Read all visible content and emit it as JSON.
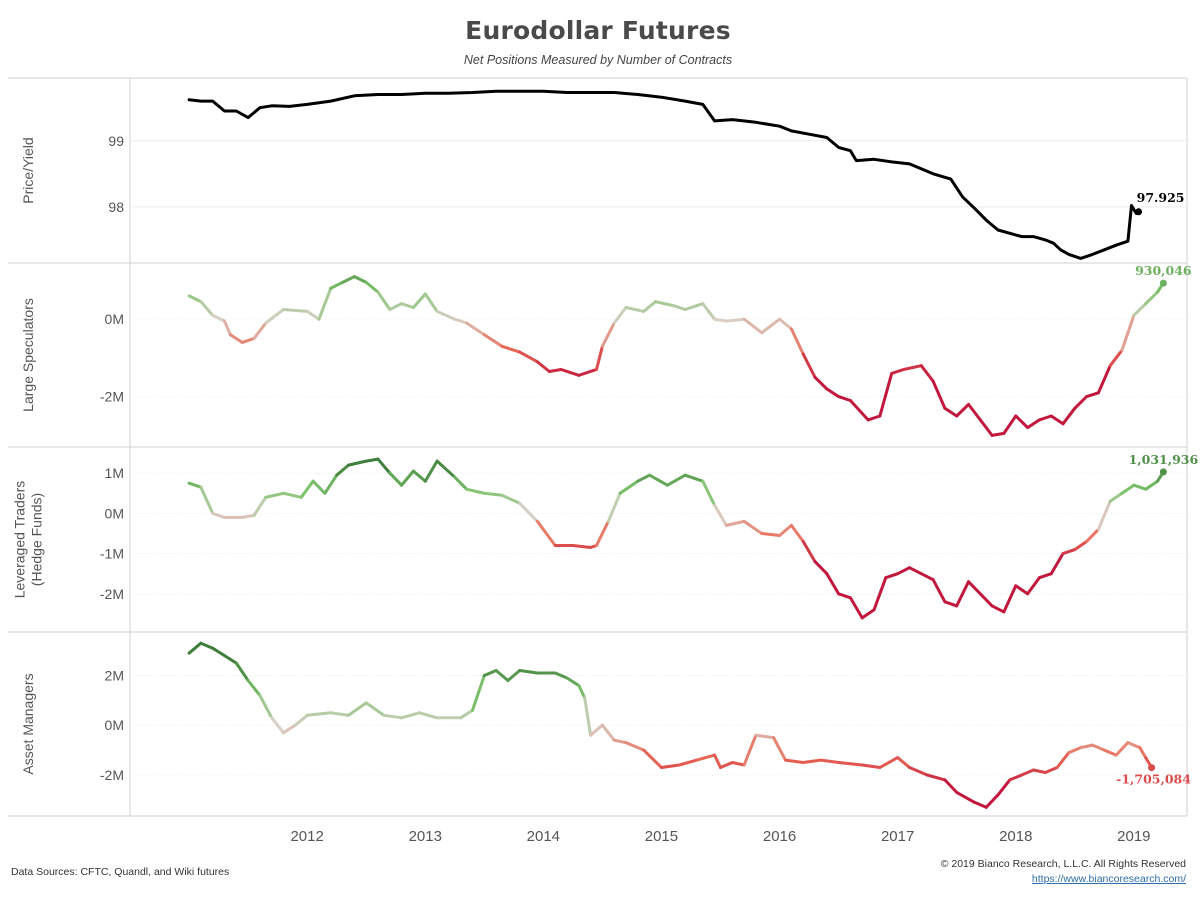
{
  "title": "Eurodollar Futures",
  "subtitle": "Net Positions Measured by Number of Contracts",
  "footer": {
    "sources": "Data Sources: CFTC, Quandl, and Wiki futures",
    "copyright": "© 2019 Bianco Research, L.L.C. All Rights Reserved",
    "url": "https://www.biancoresearch.com/"
  },
  "colors": {
    "price_line": "#000000",
    "positive_light": "#c9d9bb",
    "positive": "#7cc36a",
    "positive_dark": "#3f7d3b",
    "neutral": "#d8d0c7",
    "negative_light": "#f0a18f",
    "negative": "#ea6a55",
    "negative_dark": "#c3183e",
    "gridline": "#ececec",
    "divider": "#d0d0d0"
  },
  "chart_data": [
    {
      "type": "line",
      "panel": "price",
      "ylabel": "Price/Yield",
      "yticks": [
        {
          "value": 98,
          "label": "98"
        },
        {
          "value": 99,
          "label": "99"
        }
      ],
      "ylim": [
        97.15,
        99.95
      ],
      "xlim": [
        2011.0,
        2019.95
      ],
      "color_mode": "solid",
      "end_label": "97.925",
      "points": [
        [
          2011.5,
          99.62
        ],
        [
          2011.6,
          99.6
        ],
        [
          2011.7,
          99.6
        ],
        [
          2011.8,
          99.45
        ],
        [
          2011.9,
          99.45
        ],
        [
          2012.0,
          99.35
        ],
        [
          2012.1,
          99.5
        ],
        [
          2012.2,
          99.53
        ],
        [
          2012.35,
          99.52
        ],
        [
          2012.5,
          99.55
        ],
        [
          2012.7,
          99.6
        ],
        [
          2012.9,
          99.68
        ],
        [
          2013.1,
          99.7
        ],
        [
          2013.3,
          99.7
        ],
        [
          2013.5,
          99.72
        ],
        [
          2013.7,
          99.72
        ],
        [
          2013.9,
          99.73
        ],
        [
          2014.1,
          99.75
        ],
        [
          2014.3,
          99.75
        ],
        [
          2014.5,
          99.75
        ],
        [
          2014.7,
          99.73
        ],
        [
          2014.9,
          99.73
        ],
        [
          2015.1,
          99.73
        ],
        [
          2015.3,
          99.7
        ],
        [
          2015.5,
          99.66
        ],
        [
          2015.7,
          99.6
        ],
        [
          2015.85,
          99.55
        ],
        [
          2015.95,
          99.3
        ],
        [
          2016.1,
          99.32
        ],
        [
          2016.3,
          99.28
        ],
        [
          2016.5,
          99.22
        ],
        [
          2016.6,
          99.15
        ],
        [
          2016.75,
          99.1
        ],
        [
          2016.9,
          99.05
        ],
        [
          2017.0,
          98.9
        ],
        [
          2017.1,
          98.85
        ],
        [
          2017.15,
          98.7
        ],
        [
          2017.3,
          98.72
        ],
        [
          2017.45,
          98.68
        ],
        [
          2017.6,
          98.65
        ],
        [
          2017.8,
          98.5
        ],
        [
          2017.95,
          98.42
        ],
        [
          2018.05,
          98.15
        ],
        [
          2018.15,
          97.98
        ],
        [
          2018.25,
          97.8
        ],
        [
          2018.35,
          97.65
        ],
        [
          2018.45,
          97.6
        ],
        [
          2018.55,
          97.55
        ],
        [
          2018.65,
          97.55
        ],
        [
          2018.75,
          97.5
        ],
        [
          2018.82,
          97.45
        ],
        [
          2018.88,
          97.35
        ],
        [
          2018.95,
          97.28
        ],
        [
          2019.05,
          97.22
        ],
        [
          2019.15,
          97.28
        ],
        [
          2019.25,
          97.35
        ],
        [
          2019.35,
          97.42
        ],
        [
          2019.45,
          97.48
        ],
        [
          2019.48,
          98.02
        ],
        [
          2019.52,
          97.9
        ],
        [
          2019.54,
          97.925
        ]
      ]
    },
    {
      "type": "line",
      "panel": "large_speculators",
      "ylabel": "Large Speculators",
      "yticks": [
        {
          "value": 0,
          "label": "0M"
        },
        {
          "value": -2000000,
          "label": "-2M"
        }
      ],
      "ylim": [
        -3300000,
        1450000
      ],
      "xlim": [
        2011.0,
        2019.95
      ],
      "color_mode": "diverging",
      "color_range": 1500000,
      "end_label": "930,046",
      "points": [
        [
          2011.5,
          600000
        ],
        [
          2011.6,
          450000
        ],
        [
          2011.7,
          100000
        ],
        [
          2011.8,
          -50000
        ],
        [
          2011.85,
          -400000
        ],
        [
          2011.95,
          -600000
        ],
        [
          2012.05,
          -500000
        ],
        [
          2012.15,
          -100000
        ],
        [
          2012.3,
          250000
        ],
        [
          2012.5,
          200000
        ],
        [
          2012.6,
          0
        ],
        [
          2012.7,
          800000
        ],
        [
          2012.8,
          950000
        ],
        [
          2012.9,
          1100000
        ],
        [
          2013.0,
          950000
        ],
        [
          2013.1,
          700000
        ],
        [
          2013.2,
          250000
        ],
        [
          2013.3,
          400000
        ],
        [
          2013.4,
          300000
        ],
        [
          2013.5,
          650000
        ],
        [
          2013.6,
          200000
        ],
        [
          2013.75,
          0
        ],
        [
          2013.85,
          -100000
        ],
        [
          2014.0,
          -400000
        ],
        [
          2014.15,
          -700000
        ],
        [
          2014.3,
          -850000
        ],
        [
          2014.45,
          -1100000
        ],
        [
          2014.55,
          -1350000
        ],
        [
          2014.65,
          -1300000
        ],
        [
          2014.8,
          -1450000
        ],
        [
          2014.95,
          -1300000
        ],
        [
          2015.0,
          -700000
        ],
        [
          2015.1,
          -100000
        ],
        [
          2015.2,
          300000
        ],
        [
          2015.35,
          200000
        ],
        [
          2015.45,
          450000
        ],
        [
          2015.6,
          350000
        ],
        [
          2015.7,
          250000
        ],
        [
          2015.85,
          400000
        ],
        [
          2015.95,
          0
        ],
        [
          2016.05,
          -50000
        ],
        [
          2016.2,
          0
        ],
        [
          2016.35,
          -350000
        ],
        [
          2016.5,
          0
        ],
        [
          2016.6,
          -250000
        ],
        [
          2016.7,
          -900000
        ],
        [
          2016.8,
          -1500000
        ],
        [
          2016.9,
          -1800000
        ],
        [
          2017.0,
          -2000000
        ],
        [
          2017.1,
          -2100000
        ],
        [
          2017.25,
          -2600000
        ],
        [
          2017.35,
          -2500000
        ],
        [
          2017.45,
          -1400000
        ],
        [
          2017.55,
          -1300000
        ],
        [
          2017.7,
          -1200000
        ],
        [
          2017.8,
          -1600000
        ],
        [
          2017.9,
          -2300000
        ],
        [
          2018.0,
          -2500000
        ],
        [
          2018.1,
          -2200000
        ],
        [
          2018.2,
          -2600000
        ],
        [
          2018.3,
          -3000000
        ],
        [
          2018.4,
          -2950000
        ],
        [
          2018.5,
          -2500000
        ],
        [
          2018.6,
          -2800000
        ],
        [
          2018.7,
          -2600000
        ],
        [
          2018.8,
          -2500000
        ],
        [
          2018.9,
          -2700000
        ],
        [
          2019.0,
          -2300000
        ],
        [
          2019.1,
          -2000000
        ],
        [
          2019.2,
          -1900000
        ],
        [
          2019.3,
          -1200000
        ],
        [
          2019.4,
          -800000
        ],
        [
          2019.5,
          100000
        ],
        [
          2019.6,
          400000
        ],
        [
          2019.7,
          700000
        ],
        [
          2019.75,
          930046
        ]
      ]
    },
    {
      "type": "line",
      "panel": "leveraged_traders",
      "ylabel": [
        "Leveraged Traders",
        "(Hedge Funds)"
      ],
      "yticks": [
        {
          "value": 1000000,
          "label": "1M"
        },
        {
          "value": 0,
          "label": "0M"
        },
        {
          "value": -1000000,
          "label": "-1M"
        },
        {
          "value": -2000000,
          "label": "-2M"
        }
      ],
      "ylim": [
        -2950000,
        1650000
      ],
      "xlim": [
        2011.0,
        2019.95
      ],
      "color_mode": "diverging",
      "color_range": 1200000,
      "end_label": "1,031,936",
      "points": [
        [
          2011.5,
          750000
        ],
        [
          2011.6,
          650000
        ],
        [
          2011.7,
          0
        ],
        [
          2011.8,
          -100000
        ],
        [
          2011.95,
          -100000
        ],
        [
          2012.05,
          -50000
        ],
        [
          2012.15,
          400000
        ],
        [
          2012.3,
          500000
        ],
        [
          2012.45,
          400000
        ],
        [
          2012.55,
          800000
        ],
        [
          2012.65,
          500000
        ],
        [
          2012.75,
          950000
        ],
        [
          2012.85,
          1200000
        ],
        [
          2013.0,
          1300000
        ],
        [
          2013.1,
          1350000
        ],
        [
          2013.2,
          1000000
        ],
        [
          2013.3,
          700000
        ],
        [
          2013.4,
          1050000
        ],
        [
          2013.5,
          800000
        ],
        [
          2013.6,
          1300000
        ],
        [
          2013.75,
          900000
        ],
        [
          2013.85,
          600000
        ],
        [
          2014.0,
          500000
        ],
        [
          2014.15,
          450000
        ],
        [
          2014.3,
          250000
        ],
        [
          2014.45,
          -200000
        ],
        [
          2014.6,
          -800000
        ],
        [
          2014.75,
          -800000
        ],
        [
          2014.9,
          -850000
        ],
        [
          2014.95,
          -800000
        ],
        [
          2015.05,
          -200000
        ],
        [
          2015.15,
          500000
        ],
        [
          2015.3,
          800000
        ],
        [
          2015.4,
          950000
        ],
        [
          2015.55,
          700000
        ],
        [
          2015.7,
          950000
        ],
        [
          2015.85,
          800000
        ],
        [
          2015.95,
          200000
        ],
        [
          2016.05,
          -300000
        ],
        [
          2016.2,
          -200000
        ],
        [
          2016.35,
          -500000
        ],
        [
          2016.5,
          -550000
        ],
        [
          2016.6,
          -300000
        ],
        [
          2016.7,
          -700000
        ],
        [
          2016.8,
          -1200000
        ],
        [
          2016.9,
          -1500000
        ],
        [
          2017.0,
          -2000000
        ],
        [
          2017.1,
          -2100000
        ],
        [
          2017.2,
          -2600000
        ],
        [
          2017.3,
          -2400000
        ],
        [
          2017.4,
          -1600000
        ],
        [
          2017.5,
          -1500000
        ],
        [
          2017.6,
          -1350000
        ],
        [
          2017.7,
          -1500000
        ],
        [
          2017.8,
          -1650000
        ],
        [
          2017.9,
          -2200000
        ],
        [
          2018.0,
          -2300000
        ],
        [
          2018.1,
          -1700000
        ],
        [
          2018.2,
          -2000000
        ],
        [
          2018.3,
          -2300000
        ],
        [
          2018.4,
          -2450000
        ],
        [
          2018.5,
          -1800000
        ],
        [
          2018.6,
          -2000000
        ],
        [
          2018.7,
          -1600000
        ],
        [
          2018.8,
          -1500000
        ],
        [
          2018.9,
          -1000000
        ],
        [
          2019.0,
          -900000
        ],
        [
          2019.1,
          -700000
        ],
        [
          2019.2,
          -400000
        ],
        [
          2019.3,
          300000
        ],
        [
          2019.4,
          500000
        ],
        [
          2019.5,
          700000
        ],
        [
          2019.6,
          600000
        ],
        [
          2019.7,
          800000
        ],
        [
          2019.75,
          1031936
        ]
      ]
    },
    {
      "type": "line",
      "panel": "asset_managers",
      "ylabel": "Asset Managers",
      "yticks": [
        {
          "value": 2000000,
          "label": "2M"
        },
        {
          "value": 0,
          "label": "0M"
        },
        {
          "value": -2000000,
          "label": "-2M"
        }
      ],
      "ylim": [
        -3650000,
        3750000
      ],
      "xlim": [
        2011.0,
        2019.95
      ],
      "color_mode": "diverging",
      "color_range": 2500000,
      "end_label": "-1,705,084",
      "points": [
        [
          2011.5,
          2900000
        ],
        [
          2011.6,
          3300000
        ],
        [
          2011.7,
          3100000
        ],
        [
          2011.8,
          2800000
        ],
        [
          2011.9,
          2500000
        ],
        [
          2012.0,
          1800000
        ],
        [
          2012.1,
          1200000
        ],
        [
          2012.2,
          300000
        ],
        [
          2012.3,
          -300000
        ],
        [
          2012.4,
          0
        ],
        [
          2012.5,
          400000
        ],
        [
          2012.7,
          500000
        ],
        [
          2012.85,
          400000
        ],
        [
          2013.0,
          900000
        ],
        [
          2013.15,
          400000
        ],
        [
          2013.3,
          300000
        ],
        [
          2013.45,
          500000
        ],
        [
          2013.6,
          300000
        ],
        [
          2013.8,
          300000
        ],
        [
          2013.9,
          600000
        ],
        [
          2014.0,
          2000000
        ],
        [
          2014.1,
          2200000
        ],
        [
          2014.2,
          1800000
        ],
        [
          2014.3,
          2200000
        ],
        [
          2014.45,
          2100000
        ],
        [
          2014.6,
          2100000
        ],
        [
          2014.7,
          1900000
        ],
        [
          2014.8,
          1600000
        ],
        [
          2014.85,
          1100000
        ],
        [
          2014.9,
          -400000
        ],
        [
          2015.0,
          0
        ],
        [
          2015.1,
          -600000
        ],
        [
          2015.2,
          -700000
        ],
        [
          2015.35,
          -1000000
        ],
        [
          2015.5,
          -1700000
        ],
        [
          2015.65,
          -1600000
        ],
        [
          2015.8,
          -1400000
        ],
        [
          2015.95,
          -1200000
        ],
        [
          2016.0,
          -1700000
        ],
        [
          2016.1,
          -1500000
        ],
        [
          2016.2,
          -1600000
        ],
        [
          2016.3,
          -400000
        ],
        [
          2016.45,
          -500000
        ],
        [
          2016.55,
          -1400000
        ],
        [
          2016.7,
          -1500000
        ],
        [
          2016.85,
          -1400000
        ],
        [
          2017.0,
          -1500000
        ],
        [
          2017.2,
          -1600000
        ],
        [
          2017.35,
          -1700000
        ],
        [
          2017.5,
          -1300000
        ],
        [
          2017.6,
          -1700000
        ],
        [
          2017.75,
          -2000000
        ],
        [
          2017.9,
          -2200000
        ],
        [
          2018.0,
          -2700000
        ],
        [
          2018.15,
          -3100000
        ],
        [
          2018.25,
          -3300000
        ],
        [
          2018.35,
          -2800000
        ],
        [
          2018.45,
          -2200000
        ],
        [
          2018.55,
          -2000000
        ],
        [
          2018.65,
          -1800000
        ],
        [
          2018.75,
          -1900000
        ],
        [
          2018.85,
          -1700000
        ],
        [
          2018.95,
          -1100000
        ],
        [
          2019.05,
          -900000
        ],
        [
          2019.15,
          -800000
        ],
        [
          2019.25,
          -1000000
        ],
        [
          2019.35,
          -1200000
        ],
        [
          2019.45,
          -700000
        ],
        [
          2019.55,
          -900000
        ],
        [
          2019.6,
          -1300000
        ],
        [
          2019.65,
          -1705084
        ]
      ]
    }
  ],
  "xaxis": {
    "ticks": [
      {
        "value": 2012.5,
        "label": "2012"
      },
      {
        "value": 2013.5,
        "label": "2013"
      },
      {
        "value": 2014.5,
        "label": "2014"
      },
      {
        "value": 2015.5,
        "label": "2015"
      },
      {
        "value": 2016.5,
        "label": "2016"
      },
      {
        "value": 2017.5,
        "label": "2017"
      },
      {
        "value": 2018.5,
        "label": "2018"
      },
      {
        "value": 2019.5,
        "label": "2019"
      }
    ]
  }
}
